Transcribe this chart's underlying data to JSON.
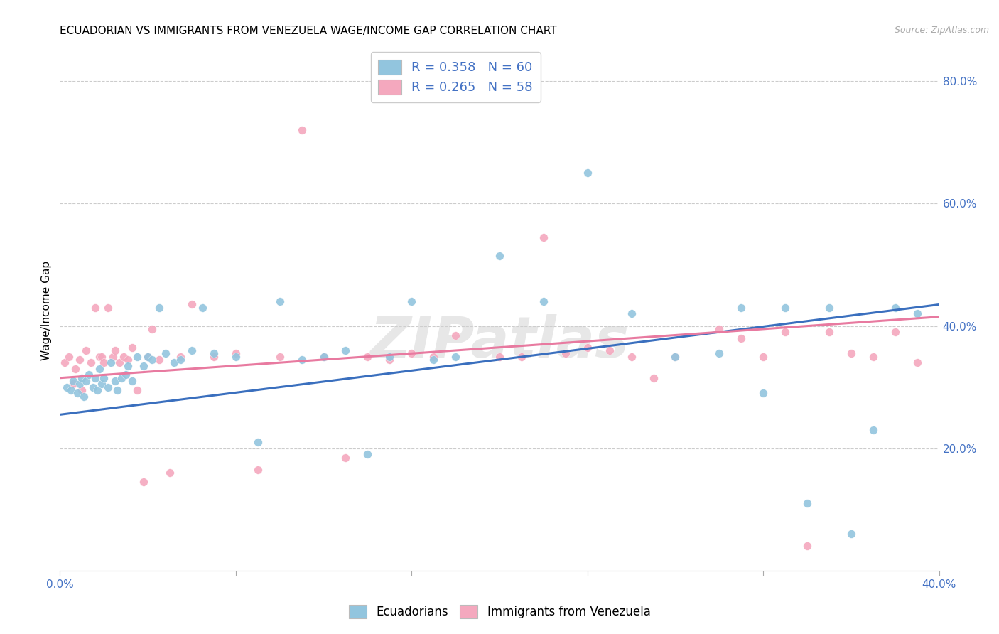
{
  "title": "ECUADORIAN VS IMMIGRANTS FROM VENEZUELA WAGE/INCOME GAP CORRELATION CHART",
  "source": "Source: ZipAtlas.com",
  "ylabel": "Wage/Income Gap",
  "x_min": 0.0,
  "x_max": 0.4,
  "y_min": 0.0,
  "y_max": 0.85,
  "x_ticks": [
    0.0,
    0.08,
    0.16,
    0.24,
    0.32,
    0.4
  ],
  "x_tick_labels": [
    "0.0%",
    "",
    "",
    "",
    "",
    "40.0%"
  ],
  "y_ticks": [
    0.2,
    0.4,
    0.6,
    0.8
  ],
  "y_tick_labels": [
    "20.0%",
    "40.0%",
    "60.0%",
    "80.0%"
  ],
  "legend1_R": "0.358",
  "legend1_N": "60",
  "legend2_R": "0.265",
  "legend2_N": "58",
  "blue_color": "#92c5de",
  "pink_color": "#f4a8be",
  "blue_line_color": "#3a6fbe",
  "pink_line_color": "#e87aa0",
  "watermark": "ZIPatlas",
  "blue_scatter_x": [
    0.003,
    0.005,
    0.006,
    0.008,
    0.009,
    0.01,
    0.011,
    0.012,
    0.013,
    0.015,
    0.016,
    0.017,
    0.018,
    0.019,
    0.02,
    0.022,
    0.023,
    0.025,
    0.026,
    0.028,
    0.03,
    0.031,
    0.033,
    0.035,
    0.038,
    0.04,
    0.042,
    0.045,
    0.048,
    0.052,
    0.055,
    0.06,
    0.065,
    0.07,
    0.08,
    0.09,
    0.1,
    0.11,
    0.12,
    0.13,
    0.14,
    0.15,
    0.16,
    0.17,
    0.18,
    0.2,
    0.22,
    0.24,
    0.26,
    0.28,
    0.3,
    0.31,
    0.32,
    0.33,
    0.34,
    0.35,
    0.36,
    0.37,
    0.38,
    0.39
  ],
  "blue_scatter_y": [
    0.3,
    0.295,
    0.31,
    0.29,
    0.305,
    0.315,
    0.285,
    0.31,
    0.32,
    0.3,
    0.315,
    0.295,
    0.33,
    0.305,
    0.315,
    0.3,
    0.34,
    0.31,
    0.295,
    0.315,
    0.32,
    0.335,
    0.31,
    0.35,
    0.335,
    0.35,
    0.345,
    0.43,
    0.355,
    0.34,
    0.345,
    0.36,
    0.43,
    0.355,
    0.35,
    0.21,
    0.44,
    0.345,
    0.35,
    0.36,
    0.19,
    0.35,
    0.44,
    0.345,
    0.35,
    0.515,
    0.44,
    0.65,
    0.42,
    0.35,
    0.355,
    0.43,
    0.29,
    0.43,
    0.11,
    0.43,
    0.06,
    0.23,
    0.43,
    0.42
  ],
  "pink_scatter_x": [
    0.002,
    0.004,
    0.006,
    0.007,
    0.009,
    0.01,
    0.012,
    0.014,
    0.016,
    0.018,
    0.019,
    0.02,
    0.022,
    0.024,
    0.025,
    0.027,
    0.029,
    0.031,
    0.033,
    0.035,
    0.038,
    0.04,
    0.042,
    0.045,
    0.05,
    0.055,
    0.06,
    0.07,
    0.08,
    0.09,
    0.1,
    0.11,
    0.12,
    0.13,
    0.14,
    0.15,
    0.16,
    0.17,
    0.18,
    0.2,
    0.21,
    0.22,
    0.23,
    0.24,
    0.25,
    0.26,
    0.27,
    0.28,
    0.3,
    0.31,
    0.32,
    0.33,
    0.34,
    0.35,
    0.36,
    0.37,
    0.38,
    0.39
  ],
  "pink_scatter_y": [
    0.34,
    0.35,
    0.305,
    0.33,
    0.345,
    0.295,
    0.36,
    0.34,
    0.43,
    0.35,
    0.35,
    0.34,
    0.43,
    0.35,
    0.36,
    0.34,
    0.35,
    0.345,
    0.365,
    0.295,
    0.145,
    0.35,
    0.395,
    0.345,
    0.16,
    0.35,
    0.435,
    0.35,
    0.355,
    0.165,
    0.35,
    0.72,
    0.35,
    0.185,
    0.35,
    0.345,
    0.355,
    0.35,
    0.385,
    0.35,
    0.35,
    0.545,
    0.355,
    0.365,
    0.36,
    0.35,
    0.315,
    0.35,
    0.395,
    0.38,
    0.35,
    0.39,
    0.04,
    0.39,
    0.355,
    0.35,
    0.39,
    0.34
  ],
  "blue_line_x": [
    0.0,
    0.4
  ],
  "blue_line_y": [
    0.255,
    0.435
  ],
  "pink_line_x": [
    0.0,
    0.4
  ],
  "pink_line_y": [
    0.315,
    0.415
  ],
  "bg_color": "#ffffff",
  "grid_color": "#cccccc",
  "title_fontsize": 11,
  "axis_color": "#4472c4",
  "legend_R_color": "#4472c4",
  "legend_N_color": "#4472c4"
}
